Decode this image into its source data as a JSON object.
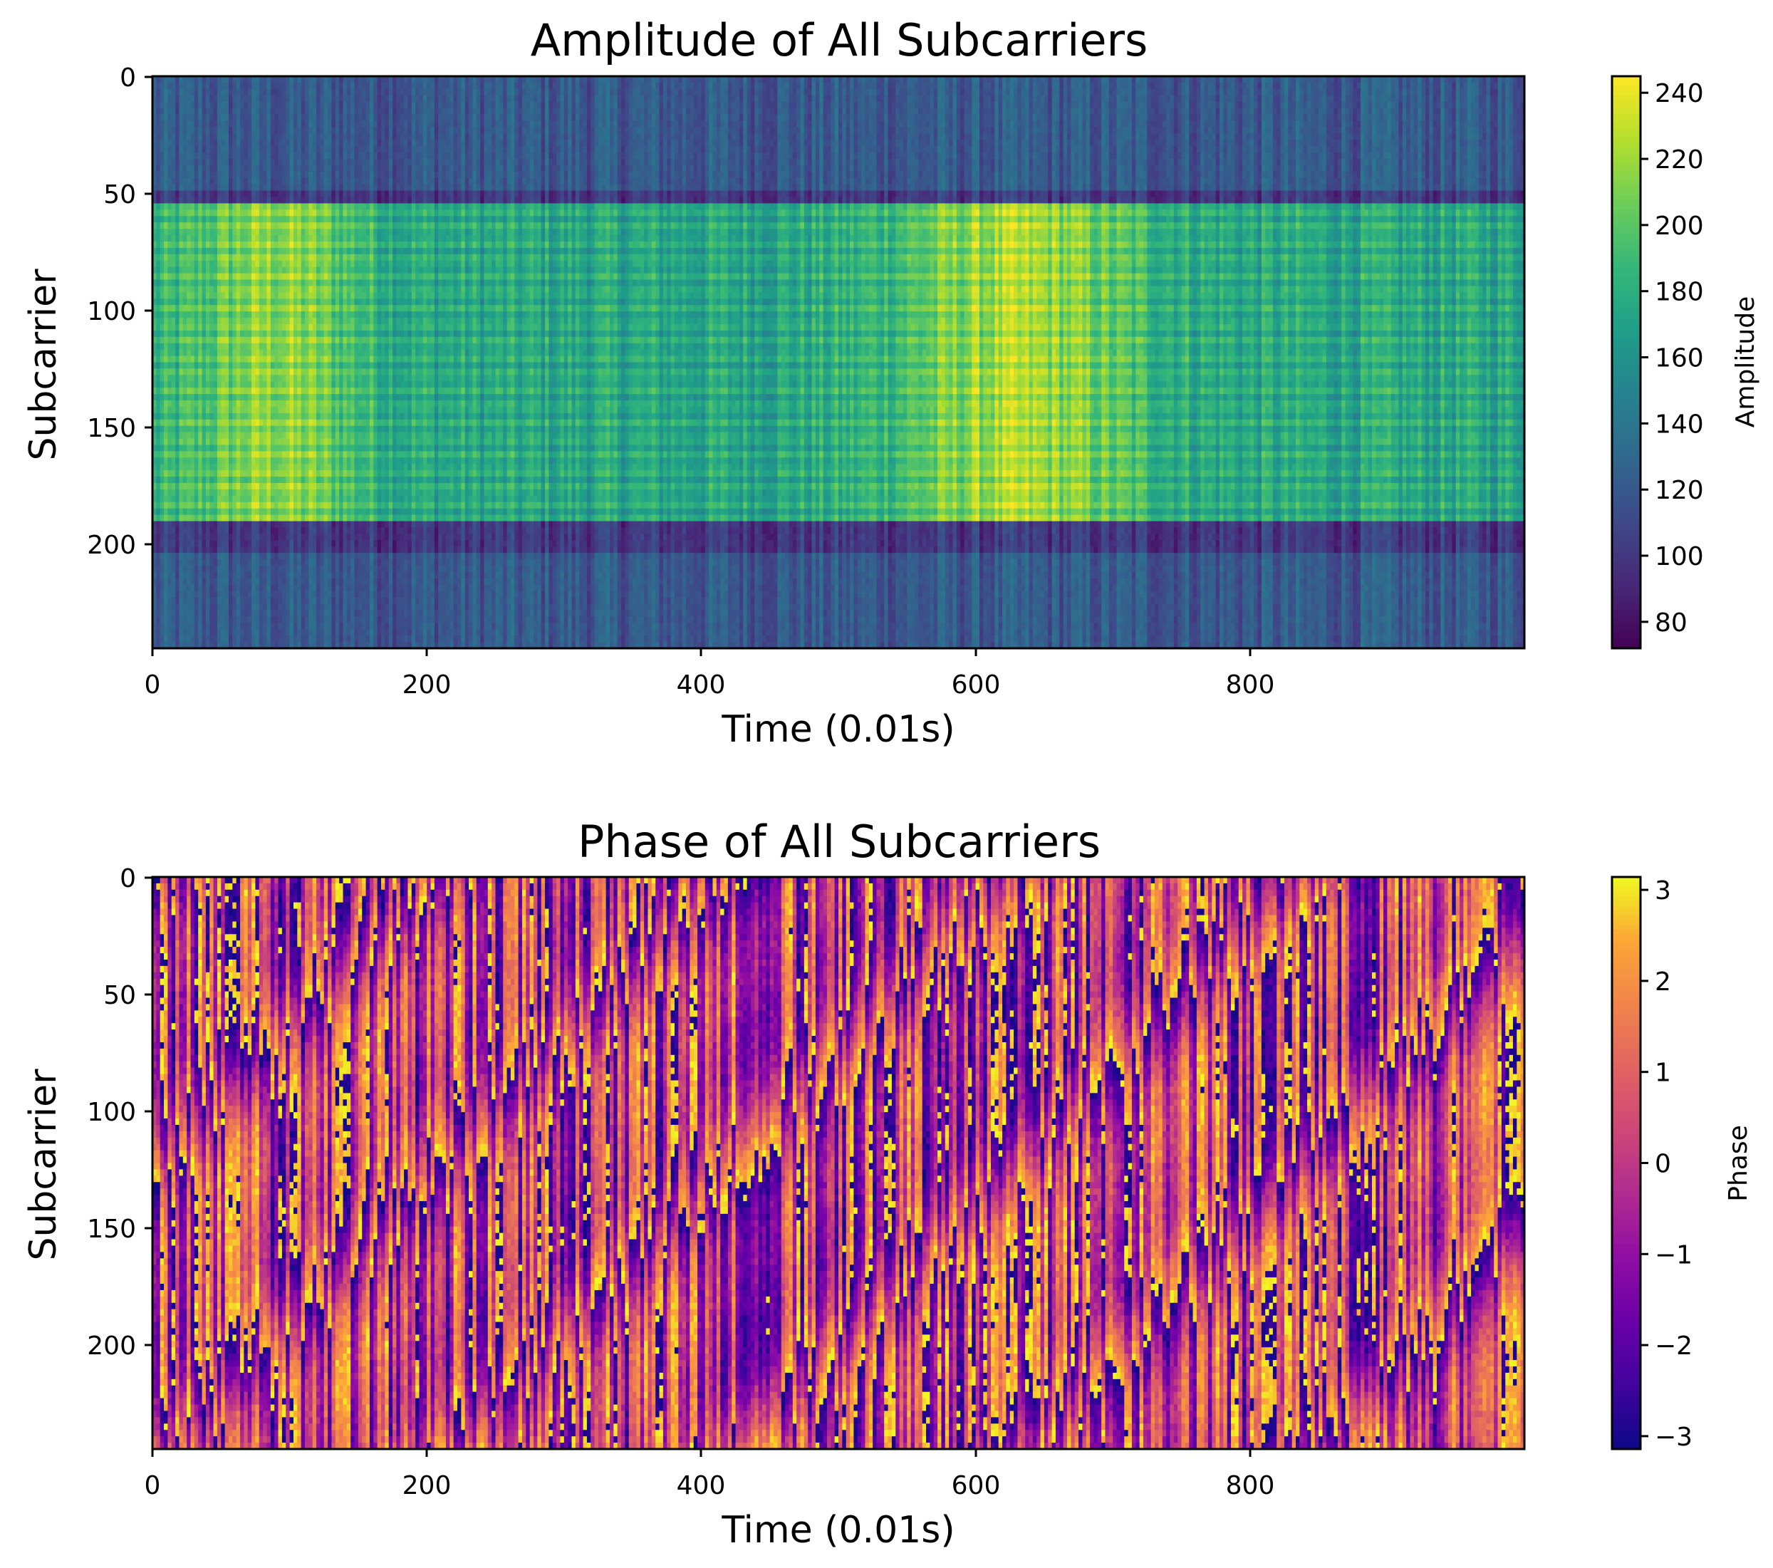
{
  "chart_data": [
    {
      "type": "heatmap",
      "title": "Amplitude of All Subcarriers",
      "xlabel": "Time (0.01s)",
      "ylabel": "Subcarrier",
      "xlim": [
        0,
        1000
      ],
      "ylim": [
        245,
        0
      ],
      "xticks": [
        0,
        200,
        400,
        600,
        800
      ],
      "yticks": [
        0,
        50,
        100,
        150,
        200
      ],
      "colormap": "viridis",
      "colorbar": {
        "label": "Amplitude",
        "range": [
          72,
          245
        ],
        "ticks": [
          80,
          100,
          120,
          140,
          160,
          180,
          200,
          220,
          240
        ]
      },
      "value_pattern": {
        "bands": [
          {
            "subcarriers": [
              0,
              48
            ],
            "typical_amplitude": 120
          },
          {
            "subcarriers": [
              48,
              55
            ],
            "typical_amplitude": 100
          },
          {
            "subcarriers": [
              55,
              190
            ],
            "typical_amplitude": 175
          },
          {
            "subcarriers": [
              190,
              205
            ],
            "typical_amplitude": 100
          },
          {
            "subcarriers": [
              205,
              245
            ],
            "typical_amplitude": 120
          }
        ],
        "bright_time_windows": [
          {
            "time": [
              40,
              140
            ],
            "peak_amplitude": 235
          },
          {
            "time": [
              560,
              700
            ],
            "peak_amplitude": 240
          }
        ]
      }
    },
    {
      "type": "heatmap",
      "title": "Phase of All Subcarriers",
      "xlabel": "Time (0.01s)",
      "ylabel": "Subcarrier",
      "xlim": [
        0,
        1000
      ],
      "ylim": [
        245,
        0
      ],
      "xticks": [
        0,
        200,
        400,
        600,
        800
      ],
      "yticks": [
        0,
        50,
        100,
        150,
        200
      ],
      "colormap": "plasma",
      "colorbar": {
        "label": "Phase",
        "range": [
          -3.14159,
          3.14159
        ],
        "ticks": [
          -3,
          -2,
          -1,
          0,
          1,
          2,
          3
        ]
      },
      "value_pattern": {
        "description_free": true,
        "wrapped_phase_range": [
          -3.14159,
          3.14159
        ]
      }
    }
  ]
}
